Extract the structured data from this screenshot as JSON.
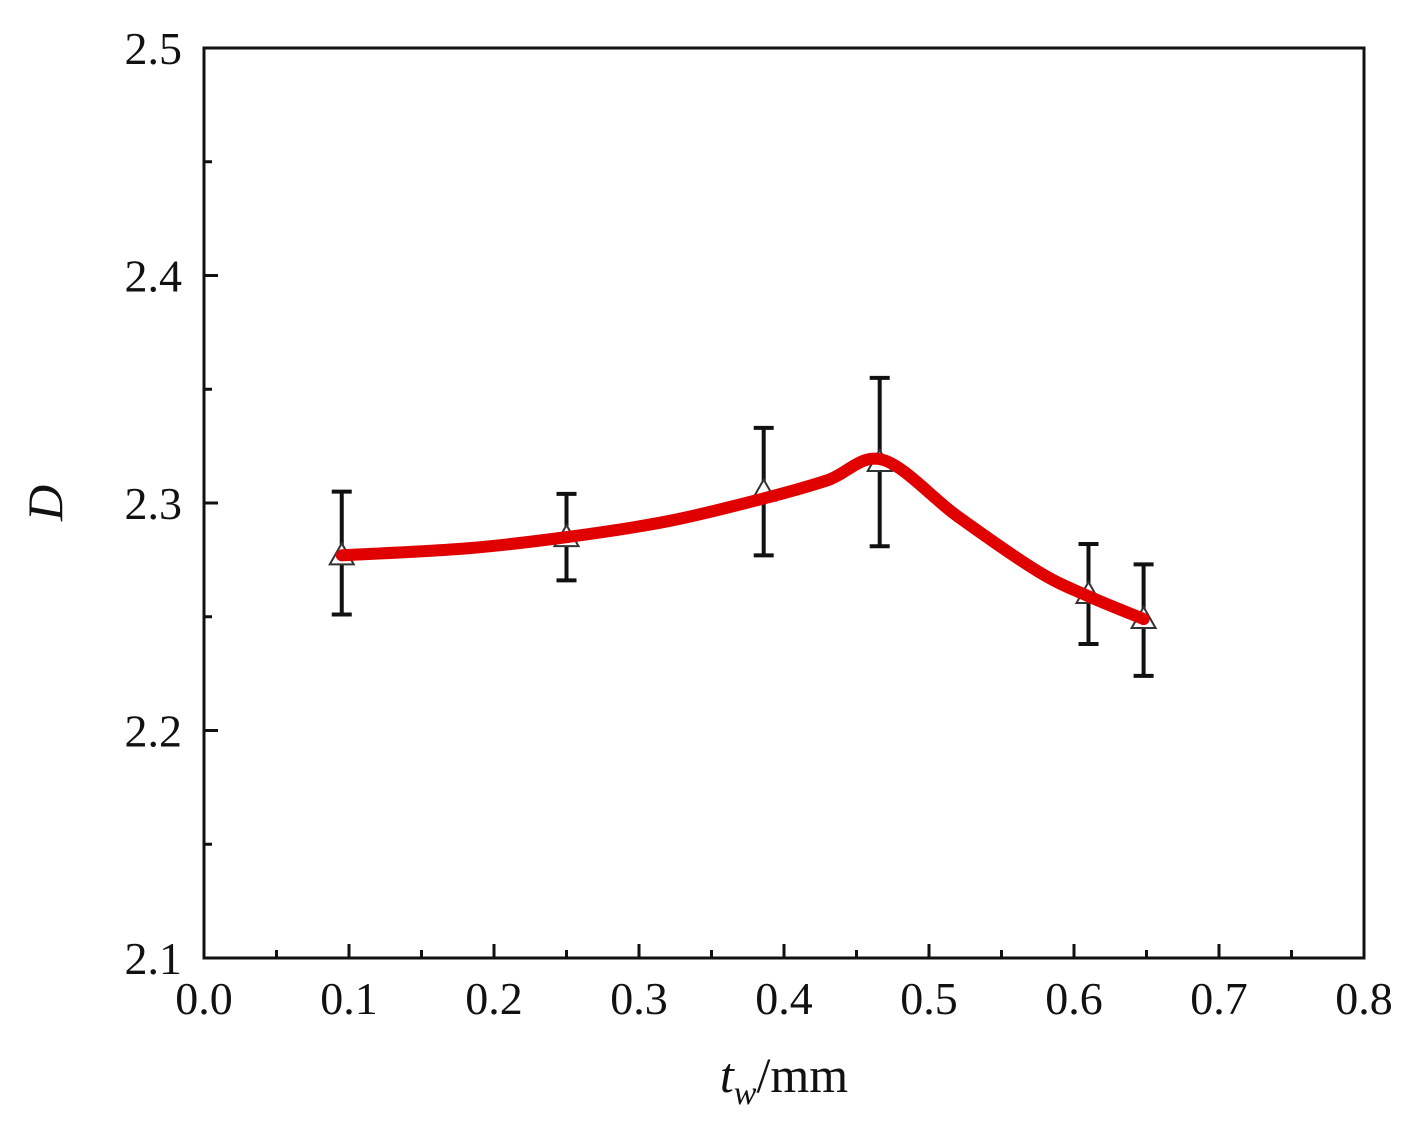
{
  "chart_data": {
    "type": "line",
    "title": "",
    "xlabel": {
      "main": "t",
      "sub": "w",
      "unit": "/mm"
    },
    "ylabel": "D",
    "xlim": [
      0.0,
      0.8
    ],
    "ylim": [
      2.1,
      2.5
    ],
    "x_ticks": [
      "0.0",
      "0.1",
      "0.2",
      "0.3",
      "0.4",
      "0.5",
      "0.6",
      "0.7",
      "0.8"
    ],
    "y_ticks": [
      "2.1",
      "2.2",
      "2.3",
      "2.4",
      "2.5"
    ],
    "grid": false,
    "legend": "none",
    "series": [
      {
        "color": "#e00000",
        "marker": "open-triangle",
        "x": [
          0.095,
          0.25,
          0.386,
          0.466,
          0.61,
          0.648
        ],
        "y": [
          2.277,
          2.285,
          2.305,
          2.318,
          2.26,
          2.249
        ],
        "error_low": [
          2.251,
          2.266,
          2.277,
          2.281,
          2.238,
          2.224
        ],
        "error_high": [
          2.305,
          2.304,
          2.333,
          2.355,
          2.282,
          2.273
        ]
      }
    ],
    "fit_curve": {
      "color": "#e00000",
      "x": [
        0.095,
        0.18,
        0.25,
        0.32,
        0.386,
        0.43,
        0.468,
        0.52,
        0.575,
        0.61,
        0.648
      ],
      "y": [
        2.277,
        2.28,
        2.285,
        2.292,
        2.302,
        2.31,
        2.319,
        2.294,
        2.27,
        2.259,
        2.249
      ]
    }
  }
}
